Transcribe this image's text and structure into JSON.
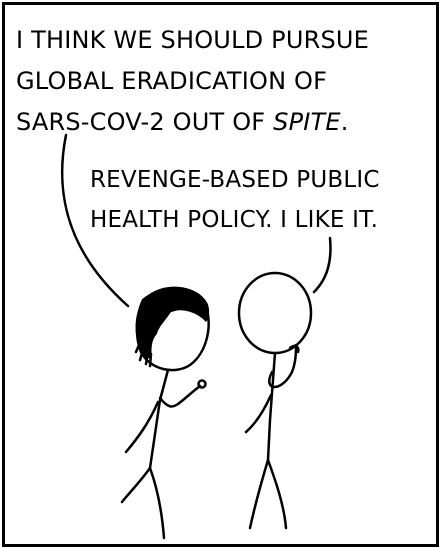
{
  "speech": {
    "left_speaker": {
      "line1": "I THINK WE SHOULD PURSUE",
      "line2": "GLOBAL ERADICATION OF",
      "line3_prefix": "SARS-COV-2 OUT OF ",
      "line3_emphasis": "SPITE",
      "line3_suffix": "."
    },
    "right_speaker": {
      "line1": "REVENGE-BASED PUBLIC",
      "line2": "HEALTH POLICY. I LIKE IT."
    }
  },
  "colors": {
    "ink": "#000000",
    "paper": "#ffffff"
  },
  "characters": [
    "character-with-dark-hair",
    "character-bald"
  ]
}
